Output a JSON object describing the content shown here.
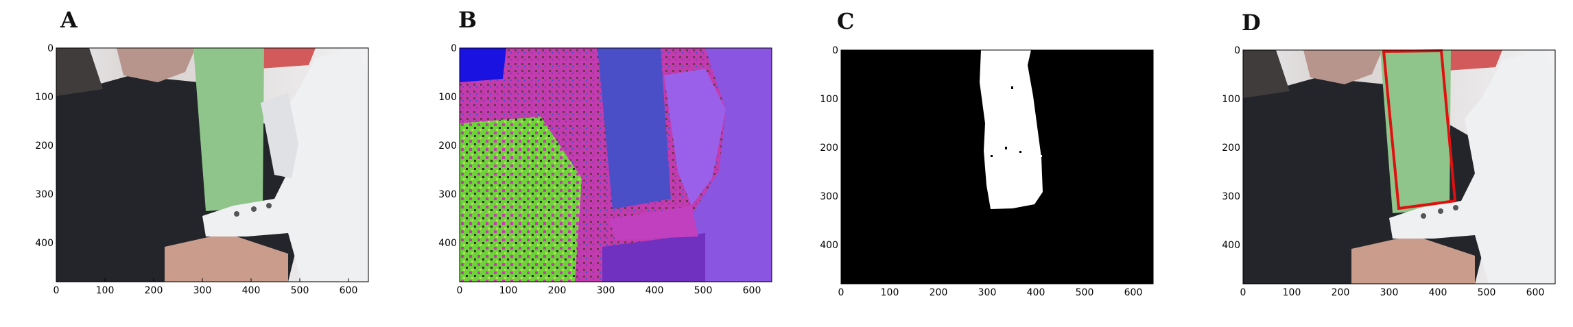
{
  "figure": {
    "panels": [
      {
        "letter": "A",
        "image": "photo of a person holding a green rectangular bar next to a white robotic hand",
        "xticks": [
          "0",
          "100",
          "200",
          "300",
          "400",
          "500",
          "600"
        ],
        "yticks": [
          "0",
          "100",
          "200",
          "300",
          "400"
        ]
      },
      {
        "letter": "B",
        "image": "false-color HSV transform of the same scene",
        "xticks": [
          "0",
          "100",
          "200",
          "300",
          "400",
          "500",
          "600"
        ],
        "yticks": [
          "0",
          "100",
          "200",
          "300",
          "400"
        ]
      },
      {
        "letter": "C",
        "image": "binary segmentation mask of the bar (white on black)",
        "xticks": [
          "0",
          "100",
          "200",
          "300",
          "400",
          "500",
          "600"
        ],
        "yticks": [
          "0",
          "100",
          "200",
          "300",
          "400"
        ]
      },
      {
        "letter": "D",
        "image": "original photo with detected bar outlined in red",
        "xticks": [
          "0",
          "100",
          "200",
          "300",
          "400",
          "500",
          "600"
        ],
        "yticks": [
          "0",
          "100",
          "200",
          "300",
          "400"
        ]
      }
    ],
    "colors": {
      "bar_green": "#8fc48a",
      "outline_red": "#e01010",
      "hsv_magenta": "#c23cb0",
      "hsv_blue": "#4a4fc8",
      "hsv_green": "#6ed23a",
      "mask_white": "#ffffff",
      "mask_black": "#000000"
    }
  }
}
